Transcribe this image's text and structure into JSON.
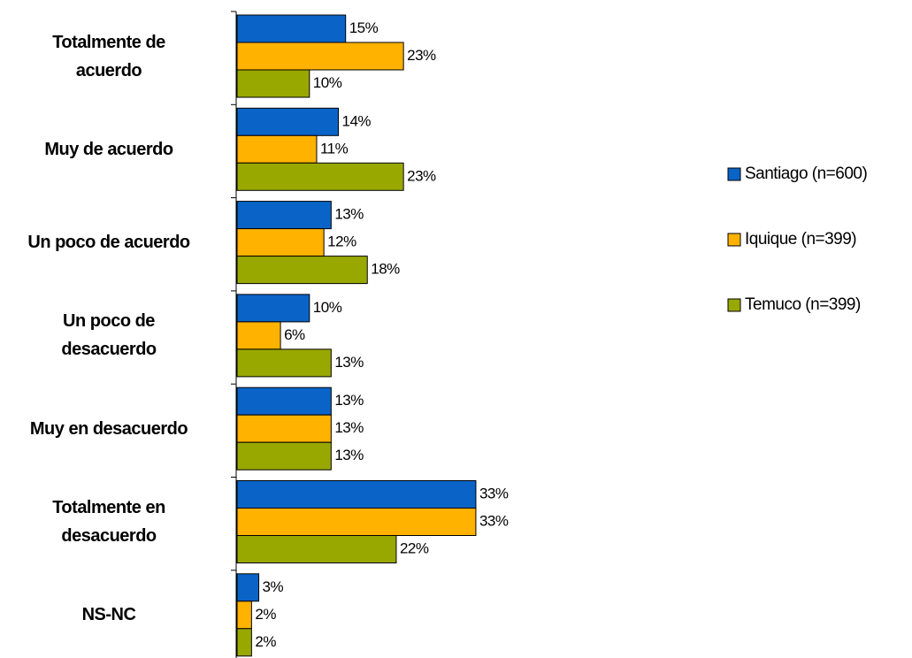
{
  "chart_data": {
    "type": "bar",
    "orientation": "horizontal",
    "categories": [
      "Totalmente de\nacuerdo",
      "Muy de acuerdo",
      "Un poco de acuerdo",
      "Un poco de\ndesacuerdo",
      "Muy en desacuerdo",
      "Totalmente en\ndesacuerdo",
      "NS-NC"
    ],
    "series": [
      {
        "name": "Santiago (n=600)",
        "color": "#0a64c8",
        "values": [
          15,
          14,
          13,
          10,
          13,
          33,
          3
        ],
        "value_labels": [
          "15%",
          "14%",
          "13%",
          "10%",
          "13%",
          "33%",
          "3%"
        ]
      },
      {
        "name": "Iquique (n=399)",
        "color": "#ffb200",
        "values": [
          23,
          11,
          12,
          6,
          13,
          33,
          2
        ],
        "value_labels": [
          "23%",
          "11%",
          "12%",
          "6%",
          "13%",
          "33%",
          "2%"
        ]
      },
      {
        "name": "Temuco (n=399)",
        "color": "#99a800",
        "values": [
          10,
          23,
          18,
          13,
          13,
          22,
          2
        ],
        "value_labels": [
          "10%",
          "23%",
          "18%",
          "13%",
          "13%",
          "22%",
          "2%"
        ]
      }
    ],
    "legend": "right"
  }
}
